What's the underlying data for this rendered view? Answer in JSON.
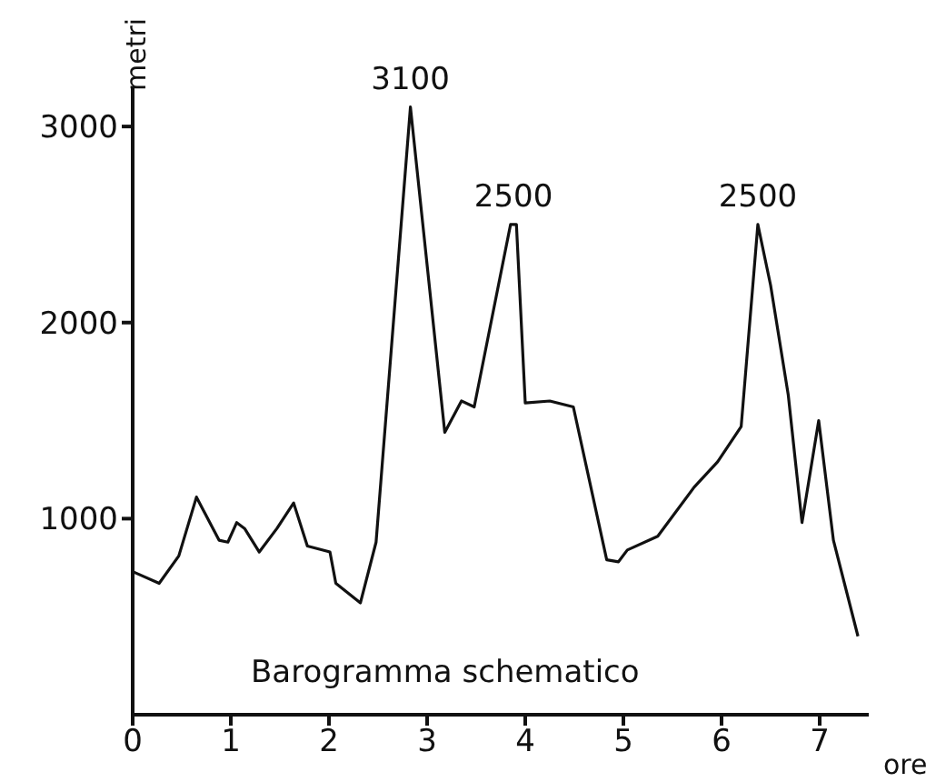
{
  "chart_data": {
    "type": "line",
    "xlabel": "ore",
    "ylabel": "metri",
    "x": [
      0,
      0.27,
      0.47,
      0.65,
      0.88,
      0.97,
      1.06,
      1.14,
      1.29,
      1.47,
      1.64,
      1.78,
      2.01,
      2.07,
      2.32,
      2.48,
      2.83,
      3.18,
      3.35,
      3.48,
      3.85,
      3.91,
      4.0,
      4.25,
      4.49,
      4.83,
      4.95,
      5.04,
      5.35,
      5.72,
      5.96,
      6.2,
      6.37,
      6.5,
      6.68,
      6.82,
      6.99,
      7.14,
      7.39
    ],
    "series": [
      {
        "color": "#111111",
        "values": [
          730,
          670,
          810,
          1110,
          890,
          880,
          980,
          950,
          830,
          950,
          1080,
          860,
          830,
          670,
          570,
          880,
          3100,
          1440,
          1600,
          1570,
          2500,
          2500,
          1590,
          1600,
          1570,
          790,
          780,
          840,
          910,
          1160,
          1290,
          1470,
          2500,
          2190,
          1630,
          980,
          1500,
          890,
          400
        ]
      }
    ],
    "xlim": [
      0,
      7.5
    ],
    "ylim": [
      0,
      3200
    ],
    "xticks": [
      0,
      1,
      2,
      3,
      4,
      5,
      6,
      7
    ],
    "yticks": [
      1000,
      2000,
      3000
    ],
    "grid": false,
    "legend": false,
    "marker": "none",
    "line_style": "solid",
    "annotations": [
      {
        "text": "3100",
        "x": 2.83,
        "y": 3100
      },
      {
        "text": "2500",
        "x": 3.88,
        "y": 2500
      },
      {
        "text": "2500",
        "x": 6.37,
        "y": 2500
      },
      "Barogramma schematico"
    ]
  }
}
